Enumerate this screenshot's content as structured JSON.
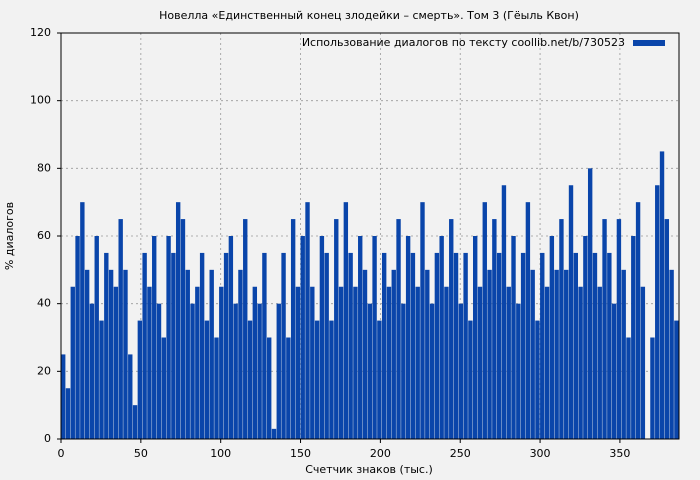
{
  "chart_data": {
    "type": "bar",
    "title": "Новелла «Единственный конец злодейки – смерть». Том 3 (Гёыль Квон)",
    "x_label": "Счетчик знаков (тыс.)",
    "y_label": "% диалогов",
    "series": [
      {
        "name": "Использование диалогов по тексту coollib.net/b/730523",
        "color": "#0a45aa",
        "x": [
          0,
          3,
          6,
          9,
          12,
          15,
          18,
          21,
          24,
          27,
          30,
          33,
          36,
          39,
          42,
          45,
          48,
          51,
          54,
          57,
          60,
          63,
          66,
          69,
          72,
          75,
          78,
          81,
          84,
          87,
          90,
          93,
          96,
          99,
          102,
          105,
          108,
          111,
          114,
          117,
          120,
          123,
          126,
          129,
          132,
          135,
          138,
          141,
          144,
          147,
          150,
          153,
          156,
          159,
          162,
          165,
          168,
          171,
          174,
          177,
          180,
          183,
          186,
          189,
          192,
          195,
          198,
          201,
          204,
          207,
          210,
          213,
          216,
          219,
          222,
          225,
          228,
          231,
          234,
          237,
          240,
          243,
          246,
          249,
          252,
          255,
          258,
          261,
          264,
          267,
          270,
          273,
          276,
          279,
          282,
          285,
          288,
          291,
          294,
          297,
          300,
          303,
          306,
          309,
          312,
          315,
          318,
          321,
          324,
          327,
          330,
          333,
          336,
          339,
          342,
          345,
          348,
          351,
          354,
          357,
          360,
          363,
          366,
          369,
          372,
          375,
          378,
          381,
          384
        ],
        "values": [
          25,
          15,
          45,
          60,
          70,
          50,
          40,
          60,
          35,
          55,
          50,
          45,
          65,
          50,
          25,
          10,
          35,
          55,
          45,
          60,
          40,
          30,
          60,
          55,
          70,
          65,
          50,
          40,
          45,
          55,
          35,
          50,
          30,
          45,
          55,
          60,
          40,
          50,
          65,
          35,
          45,
          40,
          55,
          30,
          3,
          40,
          55,
          30,
          65,
          45,
          60,
          70,
          45,
          35,
          60,
          55,
          35,
          65,
          45,
          70,
          55,
          45,
          60,
          50,
          40,
          60,
          35,
          55,
          45,
          50,
          65,
          40,
          60,
          55,
          45,
          70,
          50,
          40,
          55,
          60,
          45,
          65,
          55,
          40,
          55,
          35,
          60,
          45,
          70,
          50,
          65,
          55,
          75,
          45,
          60,
          40,
          55,
          70,
          50,
          35,
          55,
          45,
          60,
          50,
          65,
          50,
          75,
          55,
          45,
          60,
          80,
          55,
          45,
          65,
          55,
          40,
          65,
          50,
          30,
          60,
          70,
          45,
          0,
          30,
          75,
          85,
          65,
          50,
          35
        ]
      }
    ],
    "xlim": [
      0,
      387
    ],
    "xticks": [
      0,
      50,
      100,
      150,
      200,
      250,
      300,
      350
    ],
    "ylim": [
      0,
      120
    ],
    "yticks": [
      0,
      20,
      40,
      60,
      80,
      100,
      120
    ],
    "grid": true,
    "legend": "upper right"
  }
}
